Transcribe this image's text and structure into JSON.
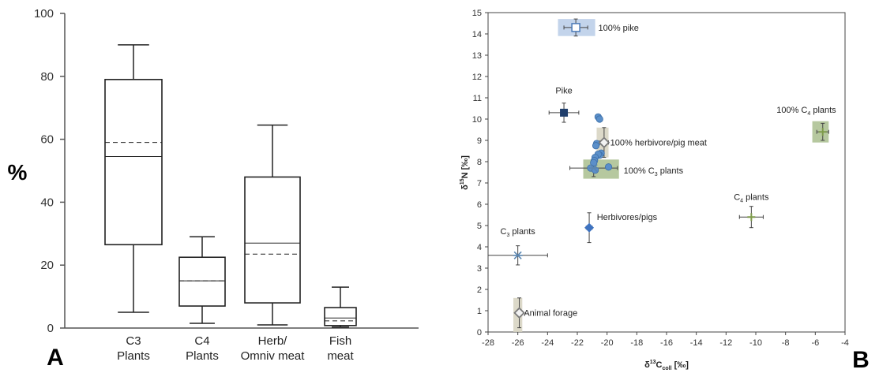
{
  "chart_data": [
    {
      "panel_label": "A",
      "type": "box",
      "ylabel": "%",
      "ylim": [
        0,
        100
      ],
      "yticks": [
        0,
        20,
        40,
        60,
        80,
        100
      ],
      "categories": [
        {
          "line1": "C3",
          "line2": "Plants"
        },
        {
          "line1": "C4",
          "line2": "Plants"
        },
        {
          "line1": "Herb/",
          "line2": "Omniv meat"
        },
        {
          "line1": "Fish",
          "line2": "meat"
        }
      ],
      "boxes": [
        {
          "whisker_low": 5,
          "q1": 26.5,
          "median": 54.5,
          "mean": 59,
          "q3": 79,
          "whisker_high": 90
        },
        {
          "whisker_low": 1.5,
          "q1": 7,
          "median": 15,
          "mean": 15,
          "q3": 22.5,
          "whisker_high": 29
        },
        {
          "whisker_low": 1,
          "q1": 8,
          "median": 27,
          "mean": 23.5,
          "q3": 48,
          "whisker_high": 64.5
        },
        {
          "whisker_low": 0.3,
          "q1": 0.8,
          "median": 3.2,
          "mean": 2.3,
          "q3": 6.5,
          "whisker_high": 13
        }
      ]
    },
    {
      "panel_label": "B",
      "type": "scatter",
      "xlabel_main": "δ",
      "xlabel_sup": "13",
      "xlabel_rest": "C",
      "xlabel_sub": "coll",
      "xlabel_unit": " [‰]",
      "ylabel_main": "δ",
      "ylabel_sup": "15",
      "ylabel_rest": "N [‰]",
      "xlim": [
        -28,
        -4
      ],
      "ylim": [
        0,
        15
      ],
      "xticks": [
        -28,
        -26,
        -24,
        -22,
        -20,
        -18,
        -16,
        -14,
        -12,
        -10,
        -8,
        -6,
        -4
      ],
      "yticks": [
        0,
        1,
        2,
        3,
        4,
        5,
        6,
        7,
        8,
        9,
        10,
        11,
        12,
        13,
        14,
        15
      ],
      "endmembers": [
        {
          "name": "100% pike",
          "x": -22.1,
          "y": 14.3,
          "sx": 0.8,
          "sy": 0.4,
          "box_x": [
            -23.3,
            -20.8
          ],
          "box_y": [
            13.9,
            14.7
          ],
          "box_color": "#b8cce8",
          "marker": "square-open",
          "marker_color": "#4a7ab8"
        },
        {
          "name": "100% herbivore/pig meat",
          "x": -20.2,
          "y": 8.9,
          "sx": 0.3,
          "sy": 0.7,
          "box_x": [
            -20.7,
            -19.9
          ],
          "box_y": [
            8.2,
            9.6
          ],
          "box_color": "#d6d2bf",
          "marker": "diamond-open",
          "marker_color": "#7a7a7a"
        },
        {
          "name": "100% C",
          "name_sub": "3",
          "name_rest": " plants",
          "x": -20.9,
          "y": 7.7,
          "sx": 1.6,
          "sy": 0.4,
          "box_x": [
            -21.6,
            -19.2
          ],
          "box_y": [
            7.2,
            8.1
          ],
          "box_color": "#a9be8e",
          "marker": "star",
          "marker_color": "#5b86b0"
        },
        {
          "name": "100% C",
          "name_sub": "4",
          "name_rest": " plants",
          "x": -5.5,
          "y": 9.4,
          "sx": 0.4,
          "sy": 0.4,
          "box_x": [
            -6.2,
            -5.1
          ],
          "box_y": [
            8.9,
            9.9
          ],
          "box_color": "#a9be8e",
          "marker": "plus",
          "marker_color": "#7d9a4a"
        },
        {
          "name": "Animal forage",
          "x": -25.9,
          "y": 0.9,
          "sx": 0.1,
          "sy": 0.7,
          "box_x": [
            -26.3,
            -25.7
          ],
          "box_y": [
            0,
            1.6
          ],
          "box_color": "#d6d2bf",
          "marker": "diamond-open",
          "marker_color": "#7a7a7a"
        }
      ],
      "sources": [
        {
          "name": "Pike",
          "x": -22.9,
          "y": 10.3,
          "sx": 1.0,
          "sy": 0.45,
          "marker": "square",
          "marker_color": "#1f3e6b"
        },
        {
          "name": "Herbivores/pigs",
          "x": -21.2,
          "y": 4.9,
          "sx": 0.2,
          "sy": 0.7,
          "marker": "diamond",
          "marker_color": "#3f73c0"
        },
        {
          "name": "C",
          "name_sub": "3",
          "name_rest": " plants",
          "x": -26.0,
          "y": 3.6,
          "sx": 2.0,
          "sy": 0.45,
          "marker": "star",
          "marker_color": "#5b86b0"
        },
        {
          "name": "C",
          "name_sub": "4",
          "name_rest": " plants",
          "x": -10.3,
          "y": 5.4,
          "sx": 0.8,
          "sy": 0.5,
          "marker": "plus",
          "marker_color": "#7d9a4a"
        }
      ],
      "individuals": [
        {
          "x": -20.6,
          "y": 10.1
        },
        {
          "x": -20.5,
          "y": 10.0
        },
        {
          "x": -20.7,
          "y": 8.85
        },
        {
          "x": -20.75,
          "y": 8.75
        },
        {
          "x": -20.4,
          "y": 8.4
        },
        {
          "x": -20.5,
          "y": 8.3
        },
        {
          "x": -20.6,
          "y": 8.35
        },
        {
          "x": -20.8,
          "y": 8.2
        },
        {
          "x": -20.85,
          "y": 8.05
        },
        {
          "x": -20.9,
          "y": 7.95
        },
        {
          "x": -21.1,
          "y": 7.7
        },
        {
          "x": -20.8,
          "y": 7.6
        },
        {
          "x": -19.9,
          "y": 7.75
        }
      ],
      "individual_color": "#5b8fc9"
    }
  ]
}
